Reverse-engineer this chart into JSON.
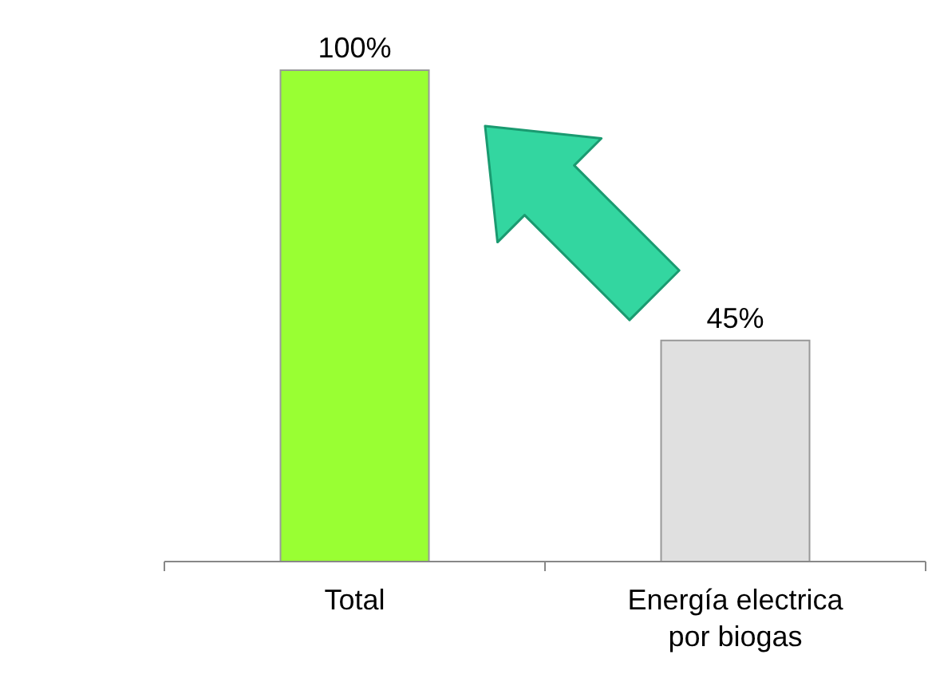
{
  "chart_data": {
    "type": "bar",
    "categories": [
      "Total",
      "Energía electrica por biogas"
    ],
    "values": [
      100,
      45
    ],
    "colors": [
      "#99ff33",
      "#e0e0e0"
    ],
    "value_labels": [
      "100%",
      "45%"
    ]
  }
}
